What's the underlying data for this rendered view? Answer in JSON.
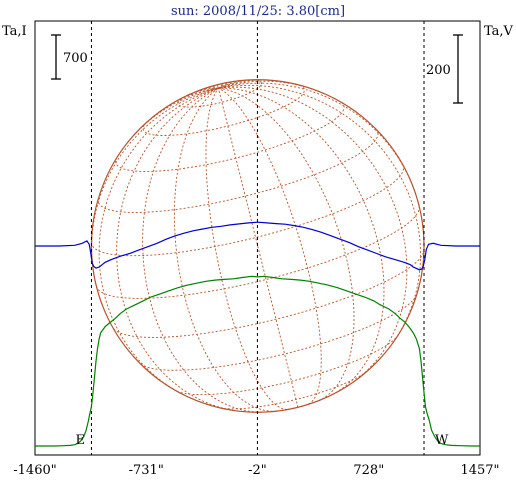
{
  "chart_data": {
    "type": "line",
    "title": "sun: 2008/11/25: 3.80[cm]",
    "left_axis_label": "Ta,I",
    "right_axis_label": "Ta,V",
    "scale_bar_left": "700",
    "scale_bar_right": "200",
    "x_ticks": [
      {
        "value": -1460,
        "label": "-1460\""
      },
      {
        "value": -731,
        "label": "-731\""
      },
      {
        "value": -2,
        "label": "-2\""
      },
      {
        "value": 728,
        "label": "728\""
      },
      {
        "value": 1457,
        "label": "1457\""
      }
    ],
    "xlim": [
      -1460,
      1457
    ],
    "limb_markers": [
      -1090,
      1090
    ],
    "center_marker": -2,
    "east_label": "E",
    "west_label": "W",
    "disk_radius": 1090,
    "grid": false,
    "series": [
      {
        "color": "#008000",
        "axis": "left",
        "x": [
          -1460,
          -1400,
          -1330,
          -1270,
          -1230,
          -1200,
          -1180,
          -1160,
          -1140,
          -1125,
          -1110,
          -1100,
          -1090,
          -1080,
          -1070,
          -1060,
          -1050,
          -1040,
          -1030,
          -1000,
          -960,
          -930,
          -900,
          -860,
          -800,
          -750,
          -700,
          -640,
          -580,
          -520,
          -460,
          -400,
          -340,
          -280,
          -220,
          -160,
          -100,
          -40,
          0,
          40,
          100,
          160,
          220,
          280,
          340,
          400,
          460,
          520,
          580,
          640,
          700,
          760,
          800,
          860,
          900,
          930,
          960,
          990,
          1020,
          1040,
          1060,
          1070,
          1080,
          1090,
          1100,
          1110,
          1125,
          1140,
          1160,
          1180,
          1200,
          1230,
          1270,
          1330,
          1400,
          1457
        ],
        "values": [
          0,
          0,
          0,
          5,
          10,
          20,
          40,
          80,
          150,
          250,
          400,
          520,
          620,
          850,
          1100,
          1350,
          1550,
          1700,
          1800,
          1900,
          1980,
          2040,
          2110,
          2180,
          2250,
          2310,
          2370,
          2420,
          2470,
          2520,
          2560,
          2590,
          2620,
          2640,
          2650,
          2660,
          2680,
          2700,
          2690,
          2700,
          2680,
          2660,
          2650,
          2640,
          2620,
          2590,
          2560,
          2520,
          2470,
          2420,
          2370,
          2310,
          2250,
          2180,
          2110,
          2040,
          1980,
          1900,
          1800,
          1700,
          1550,
          1350,
          1100,
          850,
          620,
          520,
          400,
          250,
          150,
          80,
          40,
          20,
          10,
          5,
          0,
          0
        ]
      },
      {
        "color": "#0000cc",
        "axis": "right",
        "x": [
          -1460,
          -1300,
          -1200,
          -1150,
          -1120,
          -1105,
          -1095,
          -1085,
          -1075,
          -1060,
          -1040,
          -1020,
          -1000,
          -960,
          -900,
          -840,
          -780,
          -720,
          -660,
          -600,
          -540,
          -480,
          -420,
          -360,
          -300,
          -240,
          -180,
          -120,
          -60,
          0,
          60,
          120,
          180,
          240,
          300,
          360,
          420,
          480,
          540,
          600,
          660,
          720,
          780,
          840,
          900,
          960,
          1000,
          1020,
          1040,
          1060,
          1075,
          1085,
          1095,
          1105,
          1120,
          1150,
          1200,
          1300,
          1457
        ],
        "values": [
          0,
          0,
          2,
          8,
          15,
          5,
          -20,
          -50,
          -60,
          -65,
          -62,
          -55,
          -48,
          -40,
          -30,
          -22,
          -12,
          -2,
          8,
          20,
          30,
          38,
          45,
          50,
          55,
          58,
          62,
          65,
          68,
          70,
          68,
          66,
          64,
          60,
          55,
          48,
          40,
          30,
          20,
          10,
          -2,
          -12,
          -22,
          -32,
          -40,
          -48,
          -55,
          -62,
          -66,
          -70,
          -68,
          -60,
          -40,
          -10,
          5,
          8,
          2,
          0,
          0
        ]
      }
    ]
  }
}
